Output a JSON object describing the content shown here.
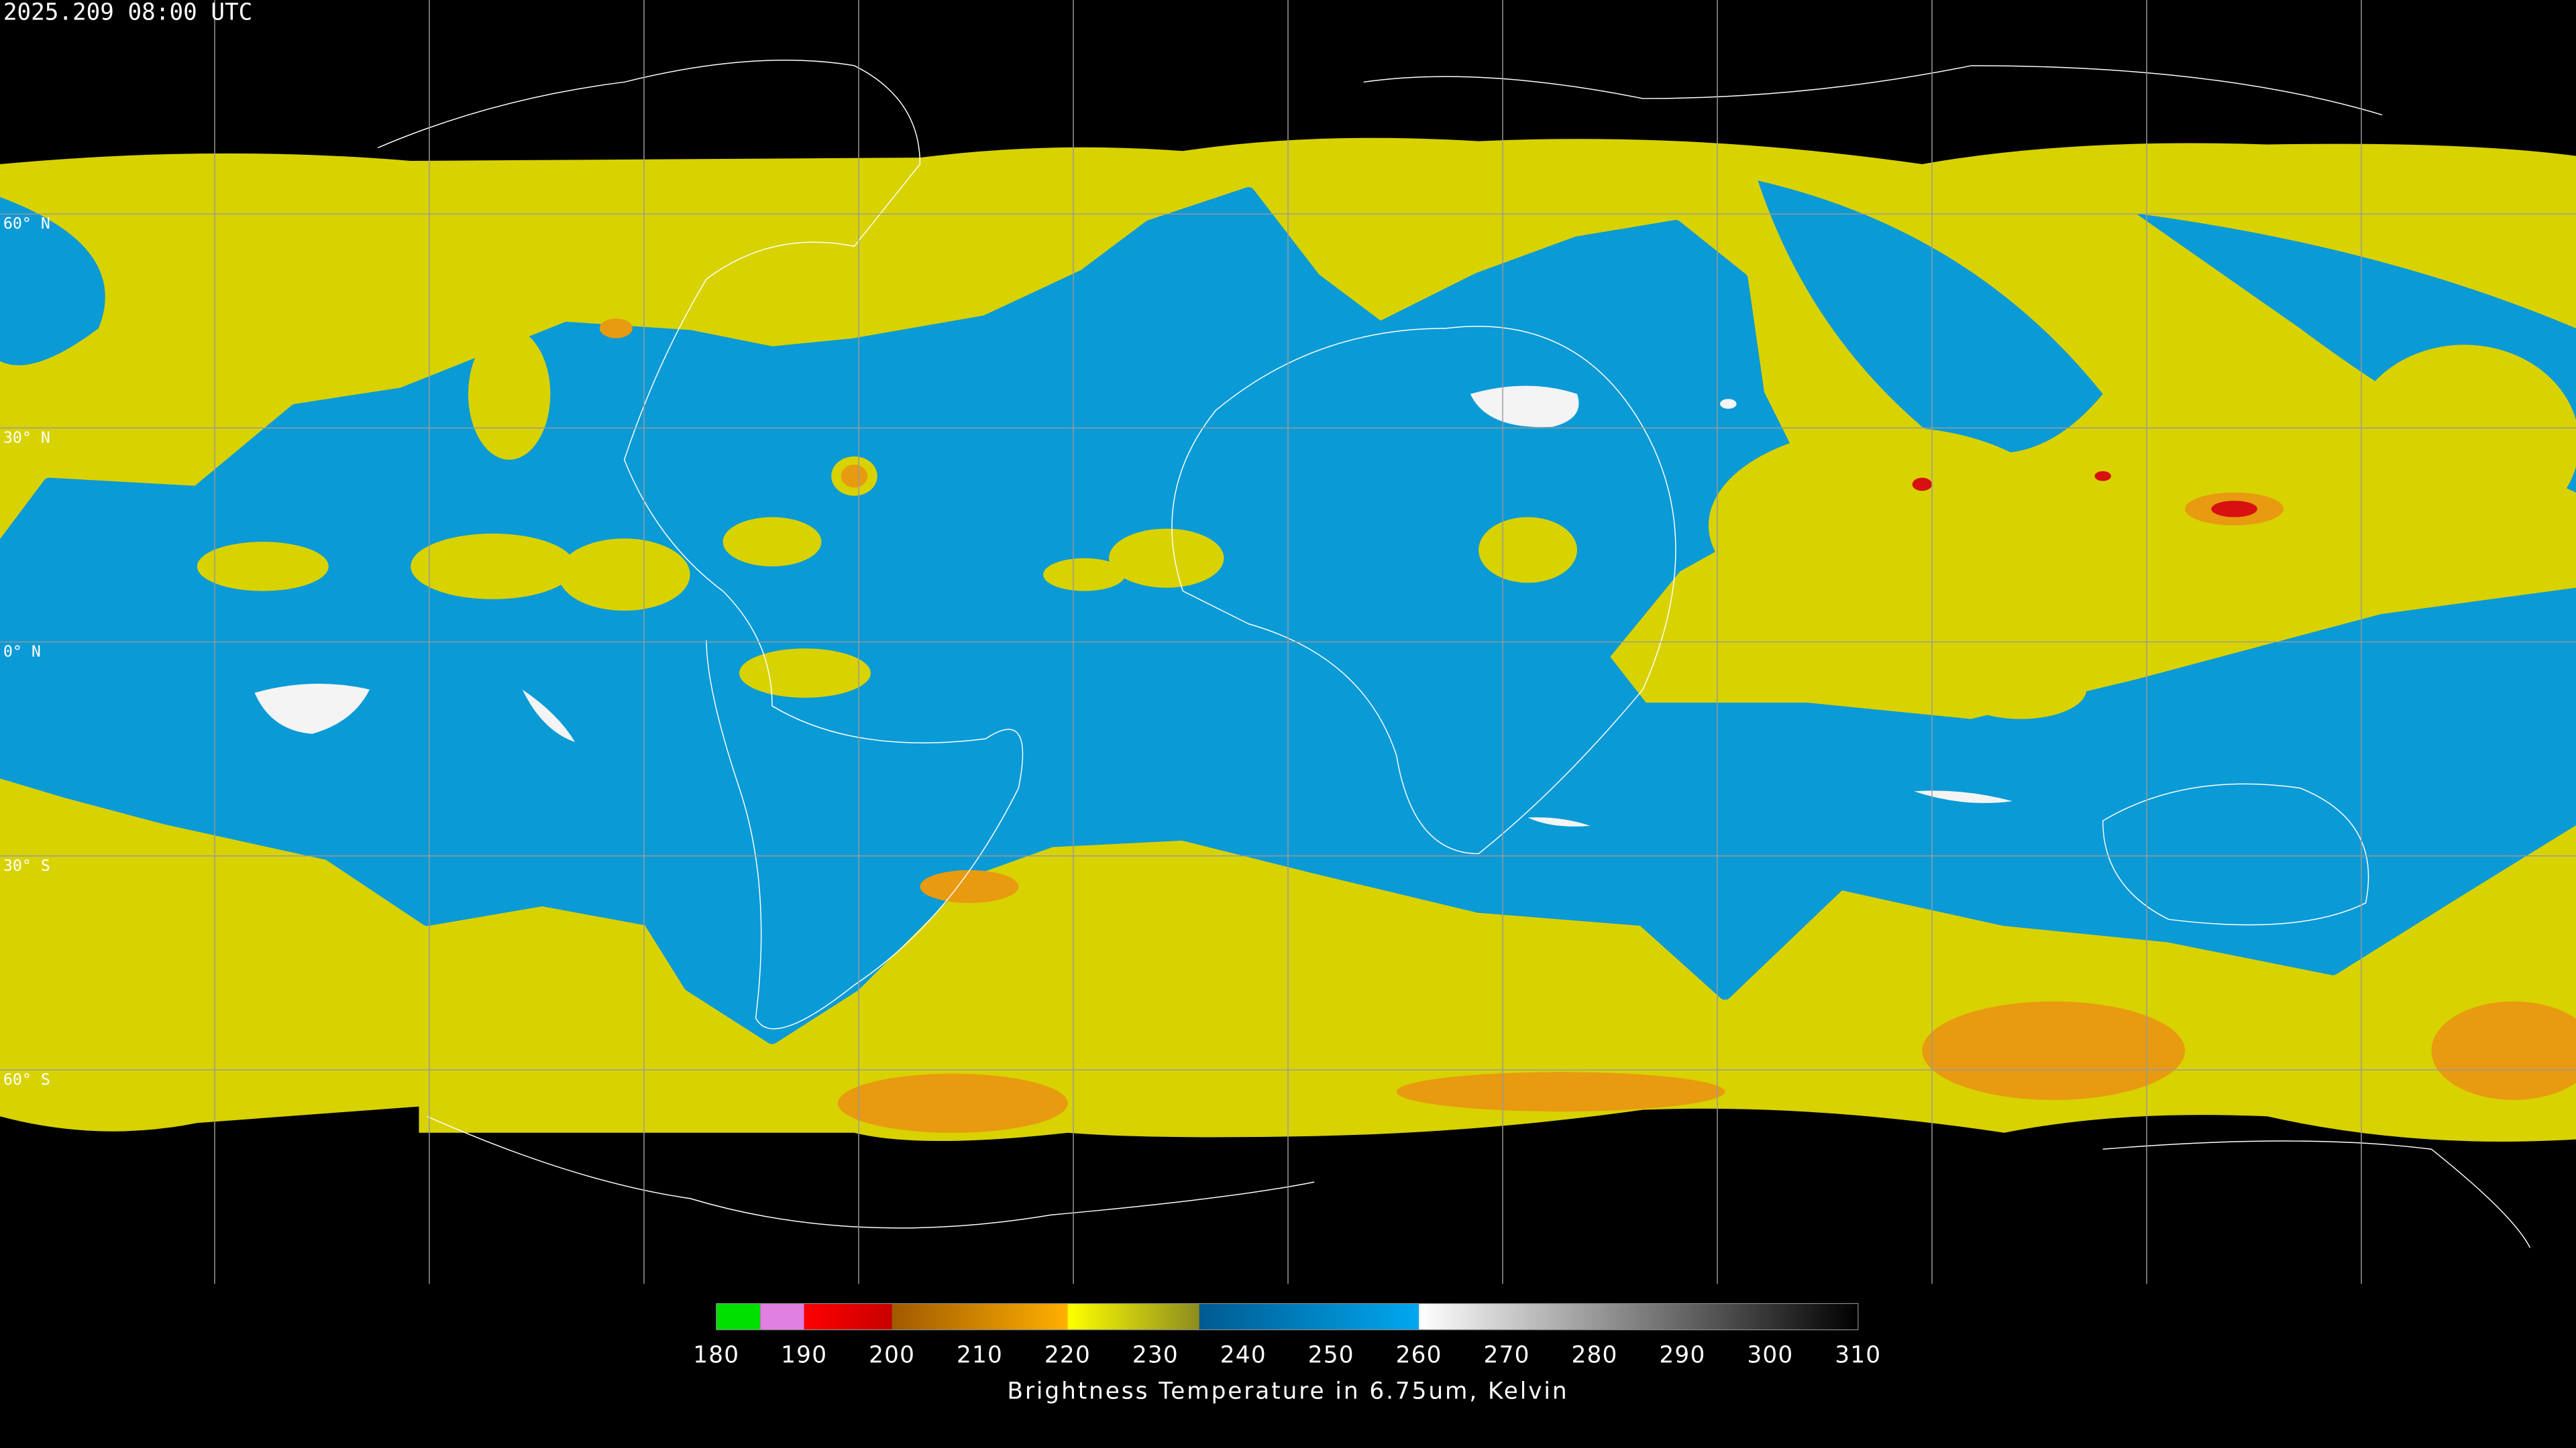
{
  "header": {
    "timestamp": "2025.209 08:00 UTC"
  },
  "map": {
    "lat_labels": [
      "60° N",
      "30° N",
      "0° N",
      "30° S",
      "60° S"
    ]
  },
  "colorbar": {
    "range": [
      180,
      310
    ],
    "ticks": [
      180,
      190,
      200,
      210,
      220,
      230,
      240,
      250,
      260,
      270,
      280,
      290,
      300,
      310
    ],
    "segments": [
      {
        "from": 180,
        "to": 185,
        "colors": [
          "#00e000",
          "#00e000"
        ]
      },
      {
        "from": 185,
        "to": 190,
        "colors": [
          "#e080e0",
          "#e080e0"
        ]
      },
      {
        "from": 190,
        "to": 200,
        "colors": [
          "#ff0000",
          "#c80000"
        ]
      },
      {
        "from": 200,
        "to": 220,
        "colors": [
          "#a05a00",
          "#ffb000"
        ]
      },
      {
        "from": 220,
        "to": 235,
        "colors": [
          "#ffff00",
          "#8c8c20"
        ]
      },
      {
        "from": 235,
        "to": 260,
        "colors": [
          "#005a90",
          "#00a8f0"
        ]
      },
      {
        "from": 260,
        "to": 310,
        "colors": [
          "#ffffff",
          "#000000"
        ]
      }
    ],
    "label": "Brightness Temperature in 6.75um, Kelvin"
  }
}
